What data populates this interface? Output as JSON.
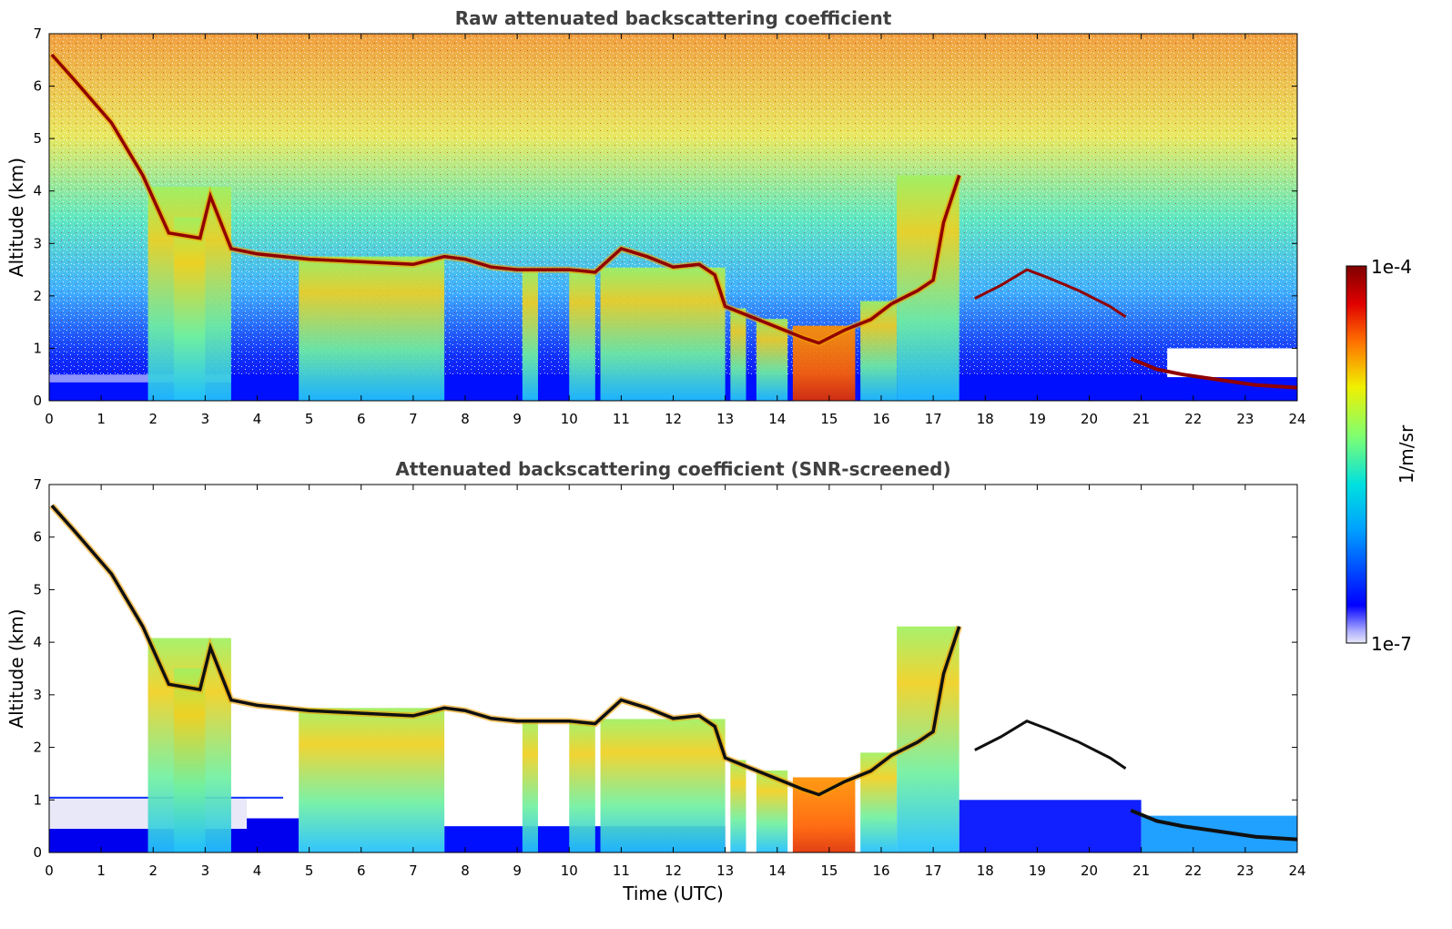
{
  "chart_data": [
    {
      "type": "heatmap",
      "title": "Raw attenuated backscattering coefficient",
      "xlabel": "",
      "ylabel": "Altitude (km)",
      "xlim": [
        0,
        24
      ],
      "ylim": [
        0,
        7
      ],
      "x_ticks": [
        "0",
        "1",
        "2",
        "3",
        "4",
        "5",
        "6",
        "7",
        "8",
        "9",
        "10",
        "11",
        "12",
        "13",
        "14",
        "15",
        "16",
        "17",
        "18",
        "19",
        "20",
        "21",
        "22",
        "23",
        "24"
      ],
      "y_ticks": [
        "0",
        "1",
        "2",
        "3",
        "4",
        "5",
        "6",
        "7"
      ],
      "screened": false,
      "cloud_layer_km": [
        [
          0.05,
          6.6
        ],
        [
          0.5,
          6.1
        ],
        [
          1.2,
          5.3
        ],
        [
          1.8,
          4.3
        ],
        [
          2.3,
          3.2
        ],
        [
          2.9,
          3.1
        ],
        [
          3.1,
          3.9
        ],
        [
          3.5,
          2.9
        ],
        [
          4.0,
          2.8
        ],
        [
          4.5,
          2.75
        ],
        [
          5.0,
          2.7
        ],
        [
          6.0,
          2.65
        ],
        [
          7.0,
          2.6
        ],
        [
          7.6,
          2.75
        ],
        [
          8.0,
          2.7
        ],
        [
          8.5,
          2.55
        ],
        [
          9.0,
          2.5
        ],
        [
          9.5,
          2.5
        ],
        [
          10.0,
          2.5
        ],
        [
          10.5,
          2.45
        ],
        [
          11.0,
          2.9
        ],
        [
          11.5,
          2.75
        ],
        [
          12.0,
          2.55
        ],
        [
          12.5,
          2.6
        ],
        [
          12.8,
          2.4
        ],
        [
          13.0,
          1.8
        ],
        [
          13.5,
          1.6
        ],
        [
          14.0,
          1.4
        ],
        [
          14.5,
          1.2
        ],
        [
          14.8,
          1.1
        ],
        [
          15.3,
          1.35
        ],
        [
          15.8,
          1.55
        ],
        [
          16.2,
          1.85
        ],
        [
          16.7,
          2.1
        ],
        [
          17.0,
          2.3
        ],
        [
          17.2,
          3.4
        ],
        [
          17.5,
          4.3
        ]
      ],
      "upper_layer_km": [
        [
          17.8,
          1.95
        ],
        [
          18.3,
          2.2
        ],
        [
          18.8,
          2.5
        ],
        [
          19.2,
          2.35
        ],
        [
          19.8,
          2.1
        ],
        [
          20.4,
          1.8
        ],
        [
          20.7,
          1.6
        ]
      ],
      "low_layer_km": [
        [
          20.8,
          0.8
        ],
        [
          21.3,
          0.6
        ],
        [
          21.8,
          0.5
        ],
        [
          22.5,
          0.4
        ],
        [
          23.2,
          0.3
        ],
        [
          24.0,
          0.25
        ]
      ],
      "dense_aerosol_columns_h": [
        [
          1.9,
          3.5
        ],
        [
          2.4,
          3.0
        ],
        [
          4.8,
          7.6
        ],
        [
          9.1,
          9.4
        ],
        [
          10.0,
          10.5
        ],
        [
          10.6,
          13.0
        ],
        [
          13.1,
          13.4
        ],
        [
          13.6,
          14.2
        ],
        [
          14.3,
          15.5
        ],
        [
          15.6,
          16.3
        ],
        [
          16.3,
          17.5
        ]
      ]
    },
    {
      "type": "heatmap",
      "title": "Attenuated backscattering coefficient (SNR-screened)",
      "xlabel": "Time (UTC)",
      "ylabel": "Altitude (km)",
      "xlim": [
        0,
        24
      ],
      "ylim": [
        0,
        7
      ],
      "x_ticks": [
        "0",
        "1",
        "2",
        "3",
        "4",
        "5",
        "6",
        "7",
        "8",
        "9",
        "10",
        "11",
        "12",
        "13",
        "14",
        "15",
        "16",
        "17",
        "18",
        "19",
        "20",
        "21",
        "22",
        "23",
        "24"
      ],
      "y_ticks": [
        "0",
        "1",
        "2",
        "3",
        "4",
        "5",
        "6",
        "7"
      ],
      "screened": true
    }
  ],
  "colorbar": {
    "min_label": "1e-7",
    "max_label": "1e-4",
    "unit_label": "1/m/sr",
    "scale": "log",
    "colormap": "jet",
    "colors": [
      "#e8e8f8",
      "#0000ff",
      "#00c8ff",
      "#7cff7c",
      "#ffd700",
      "#ff3000",
      "#800000"
    ]
  }
}
